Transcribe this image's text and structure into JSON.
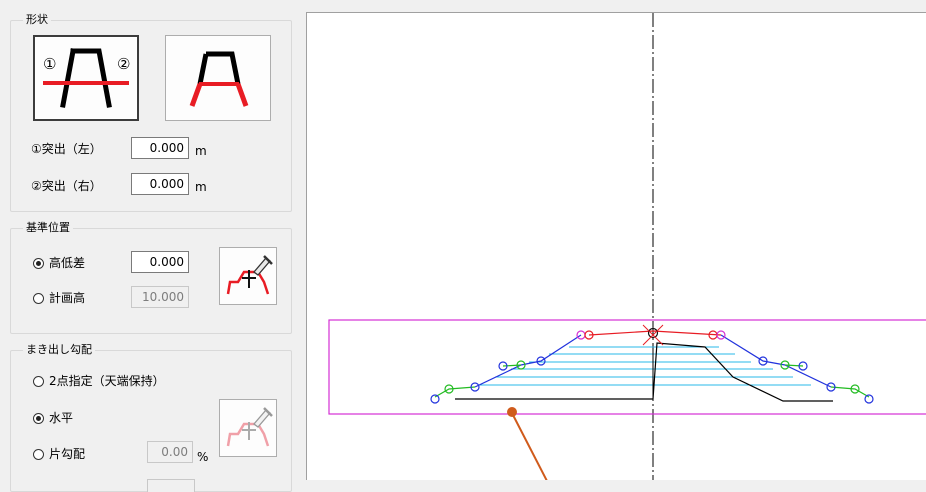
{
  "shape_group": {
    "title": "形状",
    "protrusion_left_label": "①突出（左）",
    "protrusion_left_value": "0.000",
    "protrusion_right_label": "②突出（右）",
    "protrusion_right_value": "0.000",
    "unit": "m",
    "marker_1": "①",
    "marker_2": "②"
  },
  "reference_group": {
    "title": "基準位置",
    "option_height_diff": "高低差",
    "height_diff_value": "0.000",
    "option_plan_height": "計画高",
    "plan_height_value": "10.000",
    "selected": "高低差"
  },
  "slope_group": {
    "title": "まき出し勾配",
    "option_two_point": "2点指定（天端保持）",
    "option_horizontal": "水平",
    "option_single_slope": "片勾配",
    "single_slope_value": "0.00",
    "unit": "%",
    "selected": "水平"
  },
  "colors": {
    "accent_red": "#e81c24",
    "frame_magenta": "#d42fd4",
    "annotation_orange": "#d05b1c"
  }
}
